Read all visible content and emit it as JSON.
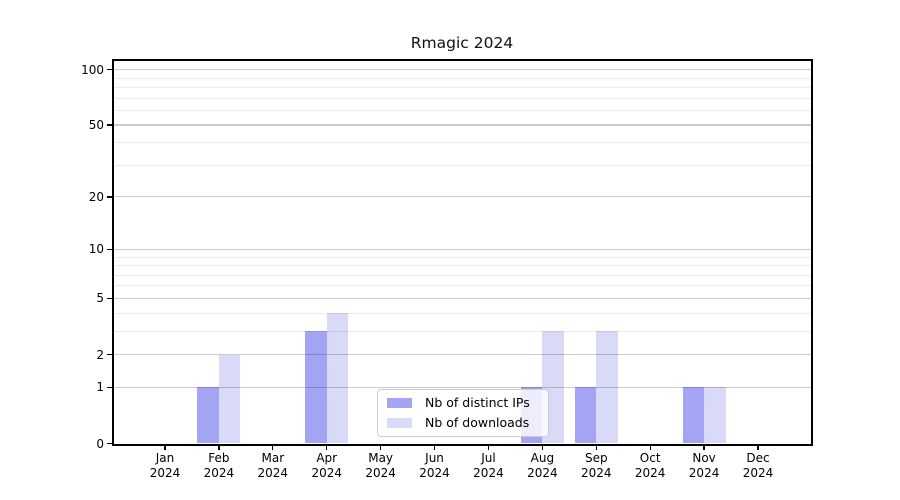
{
  "chart_data": {
    "type": "bar",
    "title": "Rmagic 2024",
    "categories": [
      "Jan",
      "Feb",
      "Mar",
      "Apr",
      "May",
      "Jun",
      "Jul",
      "Aug",
      "Sep",
      "Oct",
      "Nov",
      "Dec"
    ],
    "category_year": "2024",
    "series": [
      {
        "name": "Nb of distinct IPs",
        "color": "#a4a4f4",
        "values": [
          0,
          1,
          0,
          3,
          0,
          0,
          0,
          1,
          1,
          0,
          1,
          0
        ]
      },
      {
        "name": "Nb of downloads",
        "color": "#d9d9f8",
        "values": [
          0,
          2,
          0,
          4,
          0,
          0,
          0,
          3,
          3,
          0,
          1,
          0
        ]
      }
    ],
    "xlabel": "",
    "ylabel": "",
    "yscale": "log1p",
    "ylim": [
      0,
      113
    ],
    "ytick_labels": [
      0,
      1,
      2,
      5,
      10,
      20,
      50,
      100
    ],
    "ytick_minor": [
      3,
      4,
      6,
      7,
      8,
      9,
      30,
      40,
      60,
      70,
      80,
      90
    ],
    "grid": "horizontal major+minor, drawn over bars",
    "legend_position": "bottom-center-inside",
    "colors": {
      "major_grid": "#cfcfcf",
      "minor_grid": "#ececec",
      "spine": "#000000",
      "text": "#000000",
      "background": "#ffffff"
    }
  }
}
